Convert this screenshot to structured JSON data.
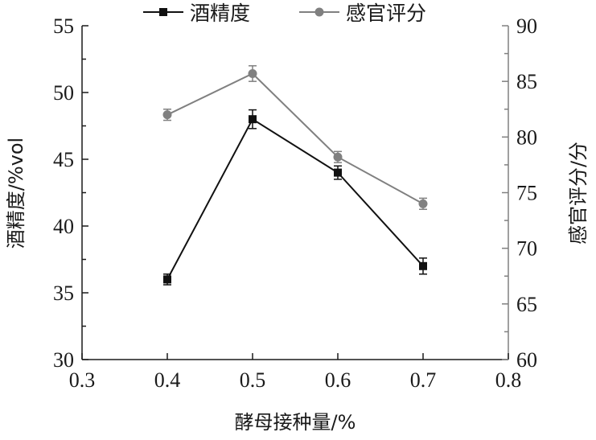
{
  "chart_data": {
    "type": "line",
    "xlabel": "酵母接种量/%",
    "x": [
      0.4,
      0.5,
      0.6,
      0.7
    ],
    "xlim": [
      0.3,
      0.8
    ],
    "xticks": [
      "0.3",
      "0.4",
      "0.5",
      "0.6",
      "0.7",
      "0.8"
    ],
    "y_left": {
      "label": "酒精度/%vol",
      "lim": [
        30,
        55
      ],
      "ticks": [
        "30",
        "35",
        "40",
        "45",
        "50",
        "55"
      ]
    },
    "y_right": {
      "label": "感官评分/分",
      "lim": [
        60,
        90
      ],
      "ticks": [
        "60",
        "65",
        "70",
        "75",
        "80",
        "85",
        "90"
      ]
    },
    "series": [
      {
        "name": "酒精度",
        "axis": "left",
        "marker": "square",
        "color": "#111111",
        "values": [
          36.0,
          48.0,
          44.0,
          37.0
        ],
        "errors": [
          0.4,
          0.7,
          0.5,
          0.6
        ]
      },
      {
        "name": "感官评分",
        "axis": "right",
        "marker": "circle",
        "color": "#808080",
        "values": [
          82.0,
          85.7,
          78.2,
          74.0
        ],
        "errors": [
          0.5,
          0.7,
          0.5,
          0.5
        ]
      }
    ],
    "legend": "top-center",
    "grid": false
  }
}
